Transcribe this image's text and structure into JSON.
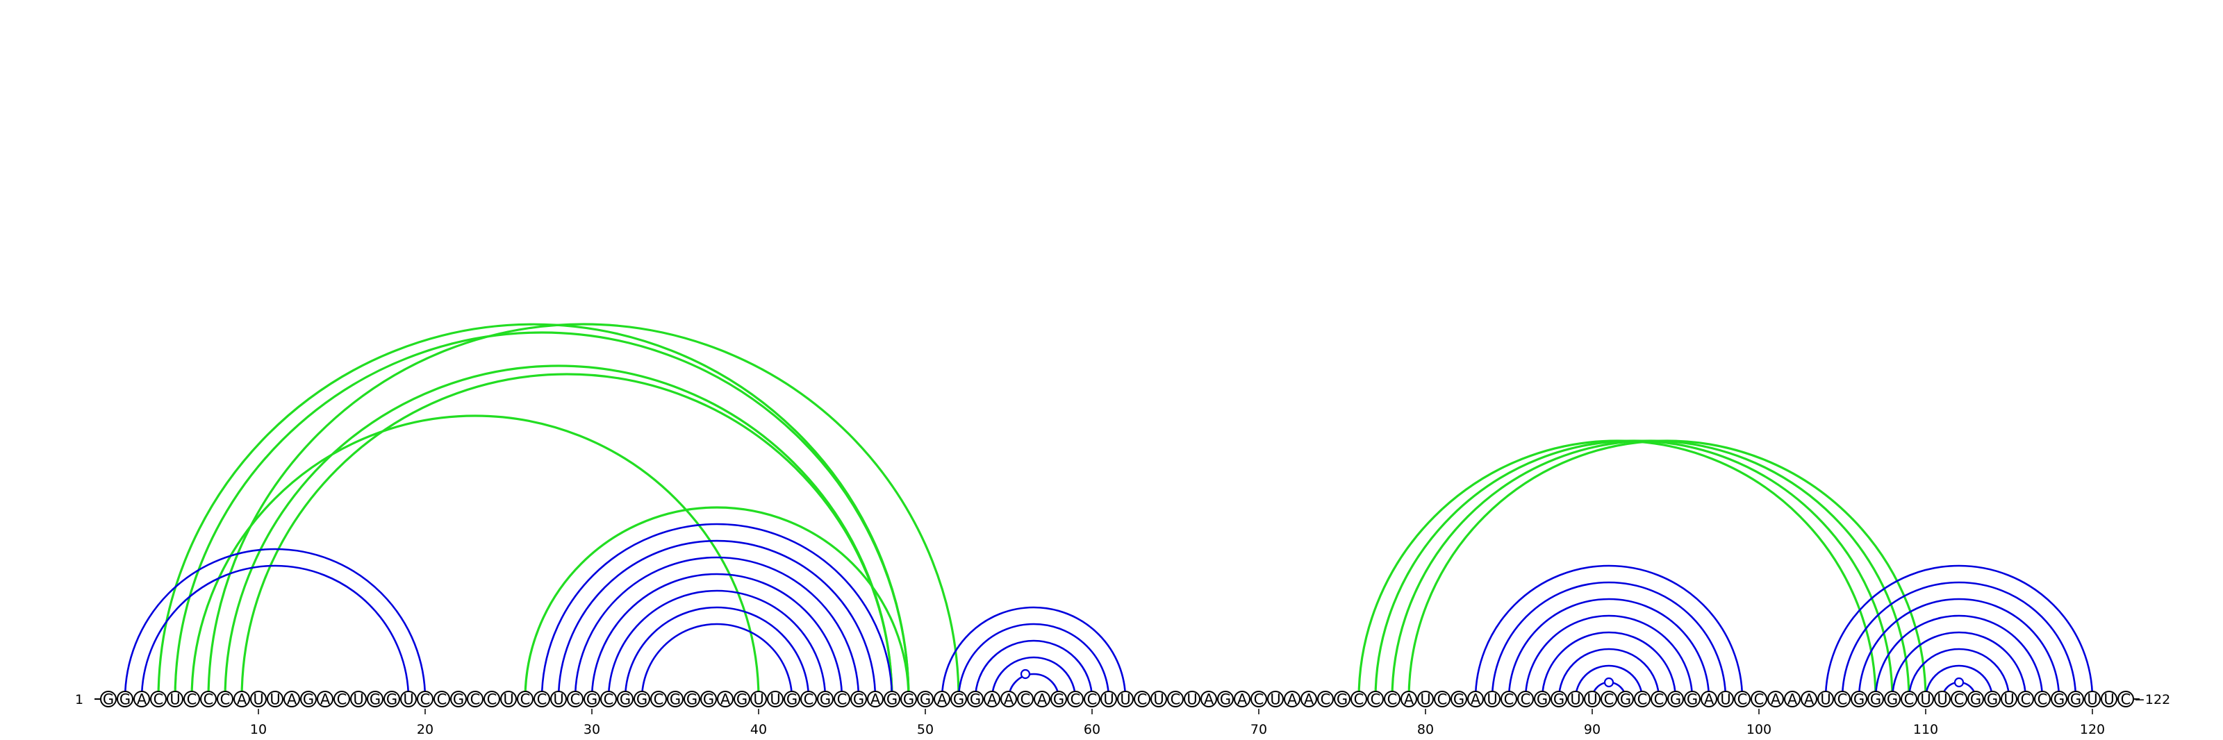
{
  "sequence": "GGACUCCCAUUAGACUGGUCCGCCUCCUCGCGGCGGGAGUUGCGCGAGGGAGGAACAGCCUUCUCUAGACUAACGCCCAUCGAUCCGGUUCGCCGGAUCCAAAUCGGGCUUCGGUCCGGUUC",
  "start_label": "1",
  "end_label": "122",
  "ticks": [
    10,
    20,
    30,
    40,
    50,
    60,
    70,
    80,
    90,
    100,
    110,
    120
  ],
  "colors": {
    "blue": "#0000dd",
    "green": "#22dd22"
  },
  "blue_pairs": [
    [
      2,
      20
    ],
    [
      3,
      19
    ],
    [
      27,
      48
    ],
    [
      28,
      47
    ],
    [
      29,
      46
    ],
    [
      30,
      45
    ],
    [
      31,
      44
    ],
    [
      32,
      43
    ],
    [
      33,
      42
    ],
    [
      51,
      62
    ],
    [
      52,
      61
    ],
    [
      53,
      60
    ],
    [
      54,
      59
    ],
    [
      55,
      58
    ],
    [
      83,
      99
    ],
    [
      84,
      98
    ],
    [
      85,
      97
    ],
    [
      86,
      96
    ],
    [
      87,
      95
    ],
    [
      88,
      94
    ],
    [
      89,
      93
    ],
    [
      90,
      92
    ],
    [
      104,
      120
    ],
    [
      105,
      119
    ],
    [
      106,
      118
    ],
    [
      107,
      117
    ],
    [
      108,
      116
    ],
    [
      109,
      115
    ],
    [
      110,
      114
    ],
    [
      111,
      113
    ]
  ],
  "green_pairs": [
    [
      4,
      49
    ],
    [
      5,
      49
    ],
    [
      7,
      52
    ],
    [
      8,
      48
    ],
    [
      9,
      48
    ],
    [
      6,
      40
    ],
    [
      26,
      49
    ],
    [
      76,
      107
    ],
    [
      77,
      108
    ],
    [
      78,
      109
    ],
    [
      79,
      110
    ]
  ],
  "unpaired_markers": [
    56,
    91,
    112
  ]
}
